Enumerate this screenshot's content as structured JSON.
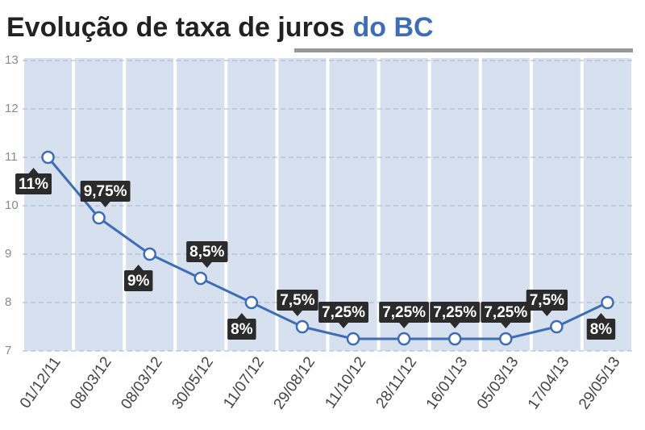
{
  "chart_data": {
    "type": "line",
    "title": "Evolução de taxa de juros",
    "title_highlight": "do BC",
    "categories": [
      "01/12/11",
      "08/03/12",
      "08/03/12",
      "30/05/12",
      "11/07/12",
      "29/08/12",
      "11/10/12",
      "28/11/12",
      "16/01/13",
      "05/03/13",
      "17/04/13",
      "29/05/13"
    ],
    "values": [
      11,
      9.75,
      9,
      8.5,
      8,
      7.5,
      7.25,
      7.25,
      7.25,
      7.25,
      7.5,
      8
    ],
    "value_labels": [
      "11%",
      "9,75%",
      "9%",
      "8,5%",
      "8%",
      "7,5%",
      "7,25%",
      "7,25%",
      "7,25%",
      "7,25%",
      "7,5%",
      "8%"
    ],
    "color": "#3d6db5",
    "ylim": [
      7,
      13
    ],
    "yticks": [
      7,
      8,
      9,
      10,
      11,
      12,
      13
    ],
    "grid": true
  }
}
